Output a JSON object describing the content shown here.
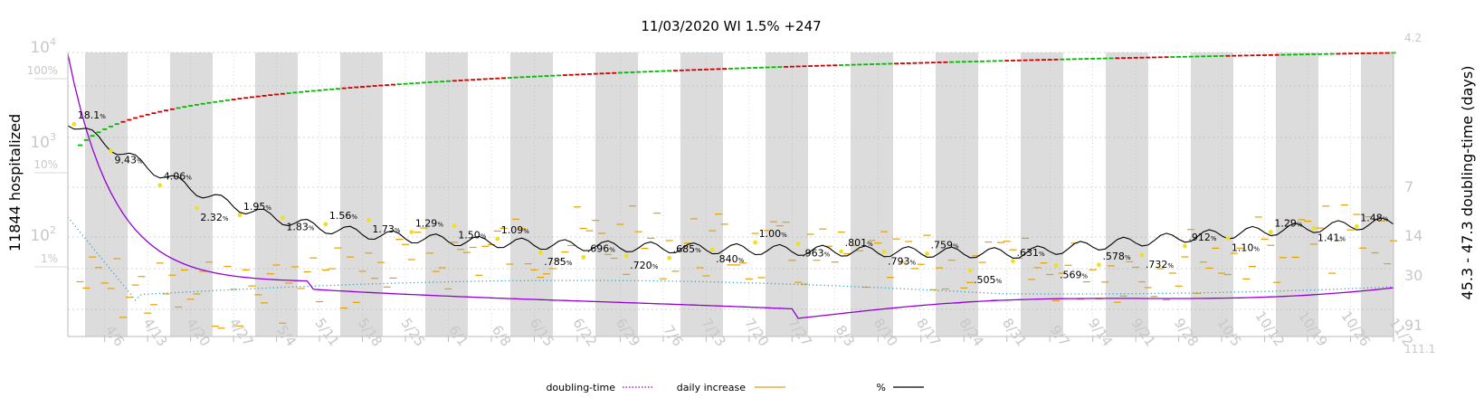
{
  "chart_data": {
    "type": "line",
    "title": "11/03/2020 WI 1.5% +247",
    "ylabel_left": "11844 hospitalized",
    "ylabel_right": "45.3 - 47.3 doubling-time (days)",
    "x_ticks": [
      "4/6",
      "4/13",
      "4/20",
      "4/27",
      "5/4",
      "5/11",
      "5/18",
      "5/25",
      "6/1",
      "6/8",
      "6/15",
      "6/22",
      "6/29",
      "7/6",
      "7/13",
      "7/20",
      "7/27",
      "8/3",
      "8/10",
      "8/17",
      "8/24",
      "8/31",
      "9/7",
      "9/14",
      "9/21",
      "9/28",
      "10/5",
      "10/12",
      "10/19",
      "10/26",
      "11/2"
    ],
    "y_left_log_ticks": [
      {
        "label": "10",
        "sup": "4",
        "value": 10000
      },
      {
        "label": "10",
        "sup": "3",
        "value": 1000
      },
      {
        "label": "10",
        "sup": "2",
        "value": 100
      }
    ],
    "y_left_pct_ticks": [
      "100%",
      "10%",
      "1%"
    ],
    "y_right_ticks": [
      "4.2",
      "7",
      "14",
      "30",
      "91",
      "111.1"
    ],
    "legend": [
      {
        "name": "doubling-time",
        "color": "#9400d3",
        "style": "dotted"
      },
      {
        "name": "daily increase",
        "color": "#e6a000",
        "style": "solid"
      },
      {
        "name": "%",
        "color": "#000000",
        "style": "solid"
      }
    ],
    "pct_annotations": [
      {
        "date": "4/1",
        "text": "18.1",
        "unit": "%"
      },
      {
        "date": "4/7",
        "text": "9.43",
        "unit": "%"
      },
      {
        "date": "4/15",
        "text": "4.06",
        "unit": "%"
      },
      {
        "date": "4/21",
        "text": "2.32",
        "unit": "%"
      },
      {
        "date": "4/28",
        "text": "1.95",
        "unit": "%"
      },
      {
        "date": "5/5",
        "text": "1.83",
        "unit": "%"
      },
      {
        "date": "5/12",
        "text": "1.56",
        "unit": "%"
      },
      {
        "date": "5/19",
        "text": "1.73",
        "unit": "%"
      },
      {
        "date": "5/26",
        "text": "1.29",
        "unit": "%"
      },
      {
        "date": "6/2",
        "text": "1.50",
        "unit": "%"
      },
      {
        "date": "6/9",
        "text": "1.09",
        "unit": "%"
      },
      {
        "date": "6/16",
        "text": ".785",
        "unit": "%"
      },
      {
        "date": "6/23",
        "text": ".696",
        "unit": "%"
      },
      {
        "date": "6/30",
        "text": ".720",
        "unit": "%"
      },
      {
        "date": "7/7",
        "text": ".685",
        "unit": "%"
      },
      {
        "date": "7/14",
        "text": ".840",
        "unit": "%"
      },
      {
        "date": "7/21",
        "text": "1.00",
        "unit": "%"
      },
      {
        "date": "7/28",
        "text": ".963",
        "unit": "%"
      },
      {
        "date": "8/4",
        "text": ".801",
        "unit": "%"
      },
      {
        "date": "8/11",
        "text": ".793",
        "unit": "%"
      },
      {
        "date": "8/18",
        "text": ".759",
        "unit": "%"
      },
      {
        "date": "8/25",
        "text": ".505",
        "unit": "%"
      },
      {
        "date": "9/1",
        "text": ".631",
        "unit": "%"
      },
      {
        "date": "9/8",
        "text": ".569",
        "unit": "%"
      },
      {
        "date": "9/15",
        "text": ".578",
        "unit": "%"
      },
      {
        "date": "9/22",
        "text": ".732",
        "unit": "%"
      },
      {
        "date": "9/29",
        "text": ".912",
        "unit": "%"
      },
      {
        "date": "10/6",
        "text": "1.10",
        "unit": "%"
      },
      {
        "date": "10/13",
        "text": "1.29",
        "unit": "%"
      },
      {
        "date": "10/20",
        "text": "1.41",
        "unit": "%"
      },
      {
        "date": "10/27",
        "text": "1.48",
        "unit": "%"
      }
    ],
    "series": [
      {
        "name": "%",
        "color": "#000000"
      },
      {
        "name": "doubling-time",
        "color": "#9400d3"
      },
      {
        "name": "daily increase",
        "color": "#e6a000"
      }
    ]
  }
}
